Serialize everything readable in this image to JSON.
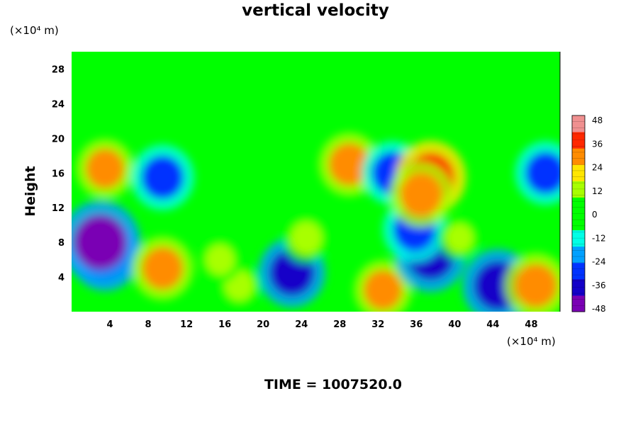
{
  "chart_data": {
    "type": "heatmap",
    "title": "vertical velocity",
    "ylabel": "Height",
    "y_unit": "(×10⁴ m)",
    "x_unit": "(×10⁴ m)",
    "footer": "TIME = 1007520.0",
    "xlim": [
      0,
      51
    ],
    "ylim": [
      0,
      30
    ],
    "x_ticks": [
      "4",
      "8",
      "12",
      "16",
      "20",
      "24",
      "28",
      "32",
      "36",
      "40",
      "44",
      "48"
    ],
    "y_ticks": [
      "4",
      "8",
      "12",
      "16",
      "20",
      "24",
      "28"
    ],
    "colorbar": {
      "range": [
        -48,
        48
      ],
      "ticks": [
        "48",
        "36",
        "24",
        "12",
        "0",
        "-12",
        "-24",
        "-36",
        "-48"
      ],
      "colors": [
        "#7a00b4",
        "#1400c8",
        "#0033ff",
        "#00a0ff",
        "#00ffe6",
        "#00ff00",
        "#00ff00",
        "#a8ff00",
        "#ffe600",
        "#ff8c00",
        "#ff2800",
        "#f09090"
      ]
    },
    "features": [
      {
        "x": 3.5,
        "y": 6.5,
        "value": -36
      },
      {
        "x": 3.0,
        "y": 8.0,
        "value": -48
      },
      {
        "x": 9.5,
        "y": 5.0,
        "value": 28
      },
      {
        "x": 23.0,
        "y": 4.5,
        "value": -34
      },
      {
        "x": 24.5,
        "y": 8.5,
        "value": 14
      },
      {
        "x": 32.5,
        "y": 2.5,
        "value": 24
      },
      {
        "x": 37.5,
        "y": 6.5,
        "value": -38
      },
      {
        "x": 35.8,
        "y": 9.5,
        "value": -30
      },
      {
        "x": 44.5,
        "y": 3.0,
        "value": -38
      },
      {
        "x": 48.5,
        "y": 3.0,
        "value": 30
      },
      {
        "x": 3.5,
        "y": 16.5,
        "value": 24
      },
      {
        "x": 9.5,
        "y": 15.5,
        "value": -30
      },
      {
        "x": 29.0,
        "y": 17.0,
        "value": 28
      },
      {
        "x": 33.5,
        "y": 16.0,
        "value": -28
      },
      {
        "x": 37.5,
        "y": 15.5,
        "value": 38
      },
      {
        "x": 36.5,
        "y": 13.5,
        "value": 30
      },
      {
        "x": 49.5,
        "y": 16.0,
        "value": -28
      },
      {
        "x": 17.5,
        "y": 3.0,
        "value": 10
      },
      {
        "x": 15.5,
        "y": 6.0,
        "value": 10
      },
      {
        "x": 40.5,
        "y": 8.5,
        "value": 8
      }
    ]
  }
}
